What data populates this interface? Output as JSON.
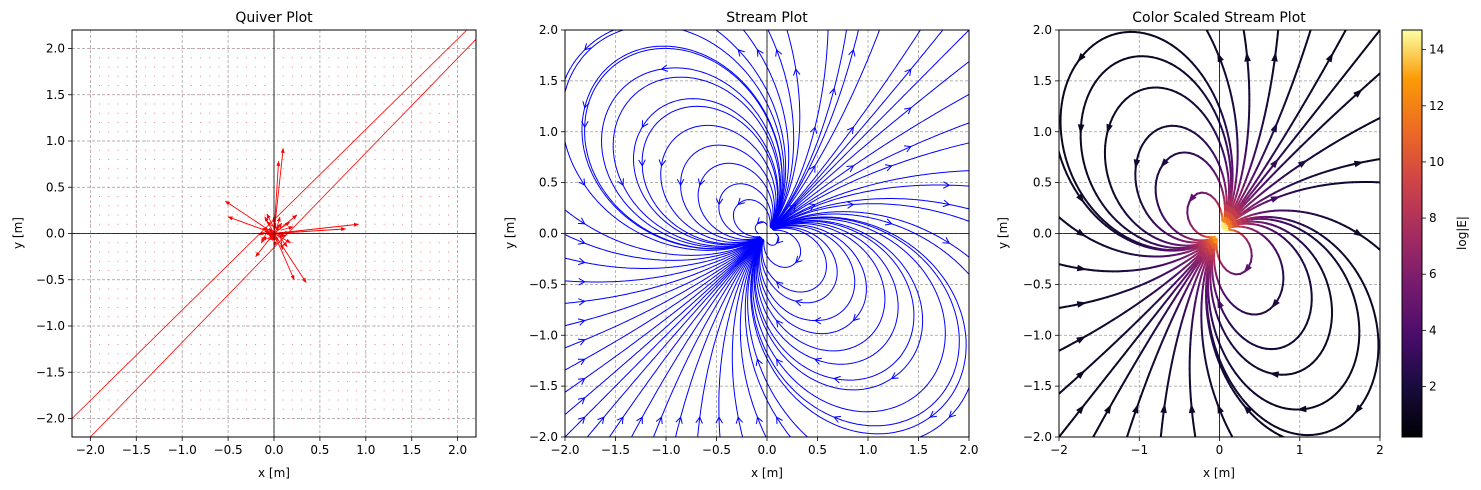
{
  "chart_data": [
    {
      "type": "quiver",
      "title": "Quiver Plot",
      "xlabel": "x [m]",
      "ylabel": "y [m]",
      "xlim": [
        -2.2,
        2.2
      ],
      "ylim": [
        -2.2,
        2.2
      ],
      "xticks": [
        -2.0,
        -1.5,
        -1.0,
        -0.5,
        0.0,
        0.5,
        1.0,
        1.5,
        2.0
      ],
      "yticks": [
        -2.0,
        -1.5,
        -1.0,
        -0.5,
        0.0,
        0.5,
        1.0,
        1.5,
        2.0
      ],
      "xtick_labels": [
        "−2.0",
        "−1.5",
        "−1.0",
        "−0.5",
        "0.0",
        "0.5",
        "1.0",
        "1.5",
        "2.0"
      ],
      "ytick_labels": [
        "−2.0",
        "−1.5",
        "−1.0",
        "−0.5",
        "0.0",
        "0.5",
        "1.0",
        "1.5",
        "2.0"
      ],
      "grid": true,
      "color": "#ff0000",
      "dipole": {
        "x": 0.0,
        "y": 0.0,
        "angle_deg": 45
      },
      "long_arrows": [
        {
          "x1": -2.2,
          "y1": -2.0,
          "x2": 2.1,
          "y2": 2.2
        },
        {
          "x1": -2.0,
          "y1": -2.2,
          "x2": 2.2,
          "y2": 2.1
        }
      ],
      "arrows": [
        {
          "x": 0.0,
          "y": 0.0,
          "u": 0.1,
          "v": 0.92
        },
        {
          "x": 0.0,
          "y": 0.0,
          "u": 0.05,
          "v": 0.78
        },
        {
          "x": 0.0,
          "y": 0.0,
          "u": 0.92,
          "v": 0.1
        },
        {
          "x": 0.0,
          "y": 0.0,
          "u": 0.78,
          "v": 0.05
        },
        {
          "x": 0.0,
          "y": 0.0,
          "u": 0.35,
          "v": -0.53
        },
        {
          "x": 0.0,
          "y": 0.0,
          "u": 0.22,
          "v": -0.5
        },
        {
          "x": 0.0,
          "y": 0.0,
          "u": -0.53,
          "v": 0.35
        },
        {
          "x": 0.0,
          "y": 0.0,
          "u": -0.5,
          "v": 0.18
        },
        {
          "x": 0.0,
          "y": 0.0,
          "u": 0.25,
          "v": 0.2
        },
        {
          "x": 0.0,
          "y": 0.0,
          "u": -0.2,
          "v": -0.25
        },
        {
          "x": 0.0,
          "y": 0.0,
          "u": 0.18,
          "v": -0.1
        },
        {
          "x": 0.0,
          "y": 0.0,
          "u": -0.1,
          "v": 0.18
        }
      ]
    },
    {
      "type": "streamplot",
      "title": "Stream Plot",
      "xlabel": "x [m]",
      "ylabel": "y [m]",
      "xlim": [
        -2.0,
        2.0
      ],
      "ylim": [
        -2.0,
        2.0
      ],
      "xticks": [
        -2.0,
        -1.5,
        -1.0,
        -0.5,
        0.0,
        0.5,
        1.0,
        1.5,
        2.0
      ],
      "yticks": [
        -2.0,
        -1.5,
        -1.0,
        -0.5,
        0.0,
        0.5,
        1.0,
        1.5,
        2.0
      ],
      "xtick_labels": [
        "−2.0",
        "−1.5",
        "−1.0",
        "−0.5",
        "0.0",
        "0.5",
        "1.0",
        "1.5",
        "2.0"
      ],
      "ytick_labels": [
        "−2.0",
        "−1.5",
        "−1.0",
        "−0.5",
        "0.0",
        "0.5",
        "1.0",
        "1.5",
        "2.0"
      ],
      "grid": true,
      "color": "#0000ff",
      "dipole": {
        "x": 0.0,
        "y": 0.0,
        "angle_deg": 45
      }
    },
    {
      "type": "streamplot",
      "title": "Color Scaled Stream Plot",
      "xlabel": "x [m]",
      "ylabel": "y [m]",
      "xlim": [
        -2.0,
        2.0
      ],
      "ylim": [
        -2.0,
        2.0
      ],
      "xticks": [
        -2,
        -1,
        0,
        1,
        2
      ],
      "yticks": [
        -2.0,
        -1.5,
        -1.0,
        -0.5,
        0.0,
        0.5,
        1.0,
        1.5,
        2.0
      ],
      "xtick_labels": [
        "−2",
        "−1",
        "0",
        "1",
        "2"
      ],
      "ytick_labels": [
        "−2.0",
        "−1.5",
        "−1.0",
        "−0.5",
        "0.0",
        "0.5",
        "1.0",
        "1.5",
        "2.0"
      ],
      "grid": true,
      "colormap": "inferno",
      "dipole": {
        "x": 0.0,
        "y": 0.0,
        "angle_deg": 45
      },
      "colorbar": {
        "label": "log|E|",
        "range": [
          0.2,
          14.7
        ],
        "ticks": [
          2,
          4,
          6,
          8,
          10,
          12,
          14
        ],
        "tick_labels": [
          "2",
          "4",
          "6",
          "8",
          "10",
          "12",
          "14"
        ]
      }
    }
  ]
}
